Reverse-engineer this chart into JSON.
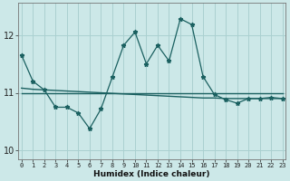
{
  "xlabel": "Humidex (Indice chaleur)",
  "background_color": "#cce8e8",
  "grid_color": "#aad0d0",
  "line_color": "#1a6060",
  "x_values": [
    0,
    1,
    2,
    3,
    4,
    5,
    6,
    7,
    8,
    9,
    10,
    11,
    12,
    13,
    14,
    15,
    16,
    17,
    18,
    19,
    20,
    21,
    22,
    23
  ],
  "y_main": [
    11.65,
    11.2,
    11.05,
    10.75,
    10.75,
    10.65,
    10.38,
    10.72,
    11.27,
    11.82,
    12.05,
    11.5,
    11.82,
    11.55,
    12.28,
    12.18,
    11.28,
    10.97,
    10.88,
    10.82,
    10.9,
    10.9,
    10.92,
    10.9
  ],
  "y_trend1": [
    11.0,
    11.0,
    11.0,
    11.0,
    11.0,
    11.0,
    11.0,
    11.0,
    11.0,
    11.0,
    11.0,
    11.0,
    11.0,
    11.0,
    11.0,
    11.0,
    11.0,
    11.0,
    11.0,
    11.0,
    11.0,
    11.0,
    11.0,
    11.0
  ],
  "y_trend2": [
    11.08,
    11.06,
    11.05,
    11.04,
    11.03,
    11.02,
    11.01,
    11.0,
    10.99,
    10.98,
    10.97,
    10.96,
    10.95,
    10.94,
    10.93,
    10.92,
    10.91,
    10.91,
    10.9,
    10.9,
    10.9,
    10.9,
    10.9,
    10.9
  ],
  "ylim": [
    9.85,
    12.55
  ],
  "xlim": [
    -0.3,
    23.3
  ],
  "yticks": [
    10,
    11,
    12
  ],
  "xtick_labels": [
    "0",
    "1",
    "2",
    "3",
    "4",
    "5",
    "6",
    "7",
    "8",
    "9",
    "10",
    "11",
    "12",
    "13",
    "14",
    "15",
    "16",
    "17",
    "18",
    "19",
    "20",
    "21",
    "22",
    "23"
  ]
}
